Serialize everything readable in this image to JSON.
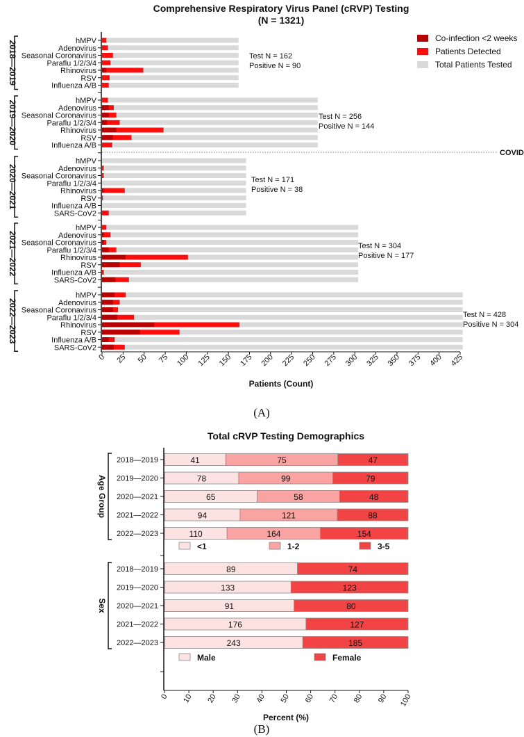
{
  "colors": {
    "coinfection": "#b80000",
    "detected": "#ff0d0d",
    "tested": "#d9d9d9",
    "age_lt1": "#fde2e2",
    "age_1_2": "#f9a3a3",
    "age_3_5": "#f24444",
    "male": "#fde2e2",
    "female": "#f24444"
  },
  "chart_data": [
    {
      "type": "bar",
      "orientation": "horizontal",
      "stacked": "overlay",
      "title": "Comprehensive Respiratory Virus Panel (cRVP) Testing",
      "subtitle": "(N = 1321)",
      "xlabel": "Patients (Count)",
      "xlim": [
        0,
        425
      ],
      "xticks": [
        0,
        25,
        50,
        75,
        100,
        125,
        150,
        175,
        200,
        225,
        250,
        275,
        300,
        325,
        350,
        375,
        400,
        425
      ],
      "legend": {
        "placement": "top-right",
        "entries": [
          "Co-infection <2 weeks",
          "Patients Detected",
          "Total Patients Tested"
        ]
      },
      "annotation_covid": "COVID-19",
      "panel_label": "(A)",
      "groups": [
        {
          "season": "2018—2019",
          "tested": 162,
          "test_label": "Test N = 162",
          "positive_label": "Positive N = 90",
          "rows": [
            {
              "virus": "hMPV",
              "coinfection": 0,
              "detected": 5
            },
            {
              "virus": "Adenovirus",
              "coinfection": 0,
              "detected": 7
            },
            {
              "virus": "Seasonal Coronavirus",
              "coinfection": 0,
              "detected": 13
            },
            {
              "virus": "Paraflu 1/2/3/4",
              "coinfection": 0,
              "detected": 10
            },
            {
              "virus": "Rhinovirus",
              "coinfection": 5,
              "detected": 49
            },
            {
              "virus": "RSV",
              "coinfection": 0,
              "detected": 9
            },
            {
              "virus": "Influenza A/B",
              "coinfection": 0,
              "detected": 8
            }
          ]
        },
        {
          "season": "2019—2020",
          "tested": 256,
          "test_label": "Test N = 256",
          "positive_label": "Positive N = 144",
          "rows": [
            {
              "virus": "hMPV",
              "coinfection": 0,
              "detected": 7
            },
            {
              "virus": "Adenovirus",
              "coinfection": 8,
              "detected": 14
            },
            {
              "virus": "Seasonal Coronavirus",
              "coinfection": 8,
              "detected": 17
            },
            {
              "virus": "Paraflu 1/2/3/4",
              "coinfection": 6,
              "detected": 21
            },
            {
              "virus": "Rhinovirus",
              "coinfection": 17,
              "detected": 73
            },
            {
              "virus": "RSV",
              "coinfection": 13,
              "detected": 35
            },
            {
              "virus": "Influenza A/B",
              "coinfection": 0,
              "detected": 12
            }
          ]
        },
        {
          "season": "2020—2021",
          "tested": 171,
          "test_label": "Test N = 171",
          "positive_label": "Positive N = 38",
          "rows": [
            {
              "virus": "hMPV",
              "coinfection": 0,
              "detected": 0
            },
            {
              "virus": "Adenovirus",
              "coinfection": 0,
              "detected": 2
            },
            {
              "virus": "Seasonal Coronavirus",
              "coinfection": 0,
              "detected": 2
            },
            {
              "virus": "Paraflu 1/2/3/4",
              "coinfection": 0,
              "detected": 0
            },
            {
              "virus": "Rhinovirus",
              "coinfection": 2,
              "detected": 27
            },
            {
              "virus": "RSV",
              "coinfection": 0,
              "detected": 1
            },
            {
              "virus": "Influenza A/B",
              "coinfection": 0,
              "detected": 0
            },
            {
              "virus": "SARS-CoV2",
              "coinfection": 0,
              "detected": 8
            }
          ]
        },
        {
          "season": "2021—2022",
          "tested": 304,
          "test_label": "Test N = 304",
          "positive_label": "Positive N = 177",
          "rows": [
            {
              "virus": "hMPV",
              "coinfection": 0,
              "detected": 5
            },
            {
              "virus": "Adenovirus",
              "coinfection": 2,
              "detected": 10
            },
            {
              "virus": "Seasonal Coronavirus",
              "coinfection": 2,
              "detected": 5
            },
            {
              "virus": "Paraflu 1/2/3/4",
              "coinfection": 8,
              "detected": 17
            },
            {
              "virus": "Rhinovirus",
              "coinfection": 28,
              "detected": 102
            },
            {
              "virus": "RSV",
              "coinfection": 21,
              "detected": 46
            },
            {
              "virus": "Influenza A/B",
              "coinfection": 0,
              "detected": 2
            },
            {
              "virus": "SARS-CoV2",
              "coinfection": 16,
              "detected": 32
            }
          ]
        },
        {
          "season": "2022—2023",
          "tested": 428,
          "test_label": "Test N = 428",
          "positive_label": "Positive N = 304",
          "rows": [
            {
              "virus": "hMPV",
              "coinfection": 15,
              "detected": 28
            },
            {
              "virus": "Adenovirus",
              "coinfection": 13,
              "detected": 21
            },
            {
              "virus": "Seasonal Coronavirus",
              "coinfection": 13,
              "detected": 19
            },
            {
              "virus": "Paraflu 1/2/3/4",
              "coinfection": 18,
              "detected": 38
            },
            {
              "virus": "Rhinovirus",
              "coinfection": 62,
              "detected": 163
            },
            {
              "virus": "RSV",
              "coinfection": 45,
              "detected": 92
            },
            {
              "virus": "Influenza A/B",
              "coinfection": 8,
              "detected": 15
            },
            {
              "virus": "SARS-CoV2",
              "coinfection": 14,
              "detected": 27
            }
          ]
        }
      ]
    },
    {
      "type": "bar",
      "orientation": "horizontal",
      "stacked": "percent",
      "title": "Total cRVP Testing Demographics",
      "xlabel": "Percent (%)",
      "xlim": [
        0,
        100
      ],
      "xticks": [
        0,
        10,
        20,
        30,
        40,
        50,
        60,
        70,
        80,
        90,
        100
      ],
      "panel_label": "(B)",
      "sections": [
        {
          "name": "Age Group",
          "series": [
            "<1",
            "1-2",
            "3-5"
          ],
          "rows": [
            {
              "season": "2018—2019",
              "values": [
                41,
                75,
                47
              ]
            },
            {
              "season": "2019—2020",
              "values": [
                78,
                99,
                79
              ]
            },
            {
              "season": "2020—2021",
              "values": [
                65,
                58,
                48
              ]
            },
            {
              "season": "2021—2022",
              "values": [
                94,
                121,
                88
              ]
            },
            {
              "season": "2022—2023",
              "values": [
                110,
                164,
                154
              ]
            }
          ]
        },
        {
          "name": "Sex",
          "series": [
            "Male",
            "Female"
          ],
          "rows": [
            {
              "season": "2018—2019",
              "values": [
                89,
                74
              ]
            },
            {
              "season": "2019—2020",
              "values": [
                133,
                123
              ]
            },
            {
              "season": "2020—2021",
              "values": [
                91,
                80
              ]
            },
            {
              "season": "2021—2022",
              "values": [
                176,
                127
              ]
            },
            {
              "season": "2022—2023",
              "values": [
                243,
                185
              ]
            }
          ]
        }
      ]
    }
  ]
}
